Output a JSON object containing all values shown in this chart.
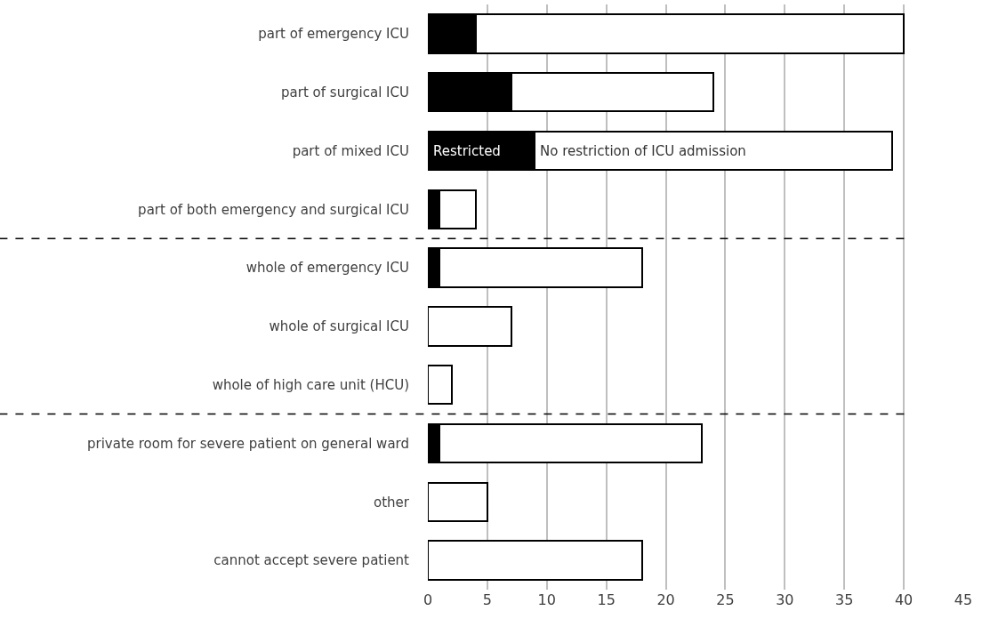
{
  "chart_data": {
    "type": "bar",
    "orientation": "horizontal",
    "stacked": true,
    "categories": [
      "part of emergency ICU",
      "part of surgical ICU",
      "part of mixed ICU",
      "part of both emergency and surgical ICU",
      "whole of emergency ICU",
      "whole of surgical ICU",
      "whole of high care unit (HCU)",
      "private room for severe patient on general ward",
      "other",
      "cannot accept severe patient"
    ],
    "series": [
      {
        "name": "Restricted",
        "color": "#000000",
        "values": [
          4,
          7,
          9,
          1,
          1,
          0,
          0,
          1,
          0,
          0
        ]
      },
      {
        "name": "No restriction of ICU admission",
        "color": "#ffffff",
        "values": [
          36,
          17,
          30,
          3,
          17,
          7,
          2,
          22,
          5,
          18
        ]
      }
    ],
    "xlim": [
      0,
      45
    ],
    "xticks": [
      0,
      5,
      10,
      15,
      20,
      25,
      30,
      35,
      40,
      45
    ],
    "grid": "x",
    "legend": false
  }
}
